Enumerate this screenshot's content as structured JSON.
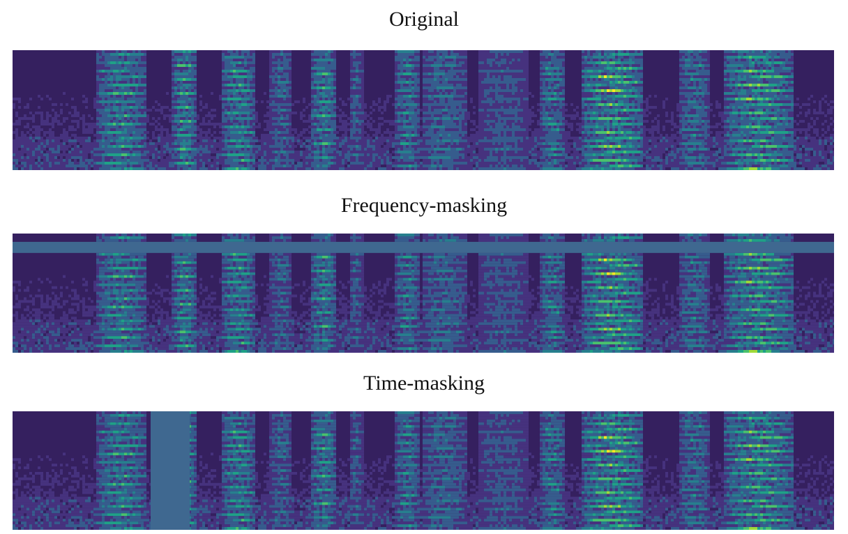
{
  "panels": [
    {
      "id": "original",
      "title": "Original",
      "mask": "none"
    },
    {
      "id": "freq",
      "title": "Frequency-masking",
      "mask": "frequency"
    },
    {
      "id": "time",
      "title": "Time-masking",
      "mask": "time"
    }
  ],
  "colors": {
    "background": "#35205f",
    "mask": "#3f6890",
    "viridis": [
      "#440154",
      "#46327e",
      "#365c8d",
      "#277f8e",
      "#1fa187",
      "#4ac16d",
      "#a0da39",
      "#fde725"
    ]
  }
}
